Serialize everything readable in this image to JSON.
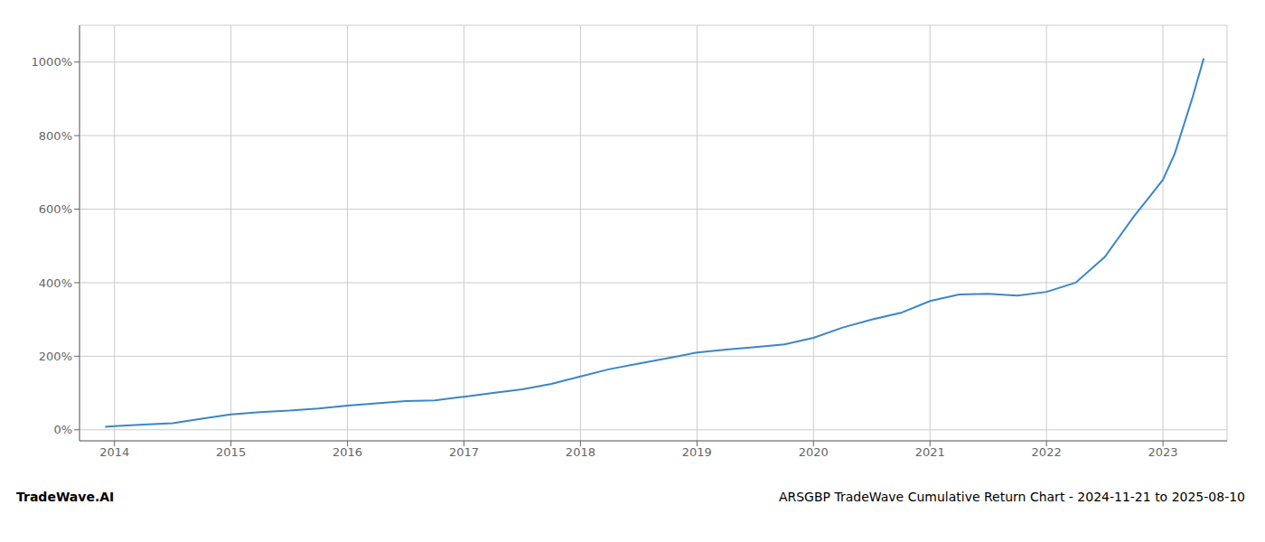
{
  "chart_data": {
    "type": "line",
    "title": "ARSGBP TradeWave Cumulative Return Chart - 2024-11-21 to 2025-08-10",
    "annotations": [
      "TradeWave.AI"
    ],
    "x": [
      2013.92,
      2014.0,
      2014.25,
      2014.5,
      2014.75,
      2015.0,
      2015.25,
      2015.5,
      2015.75,
      2016.0,
      2016.25,
      2016.5,
      2016.75,
      2017.0,
      2017.25,
      2017.5,
      2017.75,
      2018.0,
      2018.25,
      2018.5,
      2018.75,
      2019.0,
      2019.25,
      2019.5,
      2019.75,
      2020.0,
      2020.25,
      2020.5,
      2020.75,
      2021.0,
      2021.25,
      2021.5,
      2021.75,
      2022.0,
      2022.25,
      2022.5,
      2022.75,
      2023.0,
      2023.1,
      2023.25,
      2023.35
    ],
    "values": [
      8,
      10,
      14,
      18,
      30,
      42,
      48,
      52,
      58,
      66,
      72,
      78,
      80,
      90,
      100,
      110,
      125,
      145,
      165,
      180,
      195,
      210,
      218,
      225,
      232,
      250,
      278,
      300,
      318,
      350,
      368,
      370,
      365,
      375,
      400,
      470,
      580,
      680,
      750,
      900,
      1010
    ],
    "color": "#3a87c8",
    "xlim": [
      2013.7,
      2023.55
    ],
    "xticks": [
      2014,
      2015,
      2016,
      2017,
      2018,
      2019,
      2020,
      2021,
      2022,
      2023
    ],
    "ylim": [
      -30,
      1100
    ],
    "yticks": [
      {
        "value": 0,
        "label": "0%"
      },
      {
        "value": 200,
        "label": "200%"
      },
      {
        "value": 400,
        "label": "400%"
      },
      {
        "value": 600,
        "label": "600%"
      },
      {
        "value": 800,
        "label": "800%"
      },
      {
        "value": 1000,
        "label": "1000%"
      }
    ],
    "grid": true
  }
}
